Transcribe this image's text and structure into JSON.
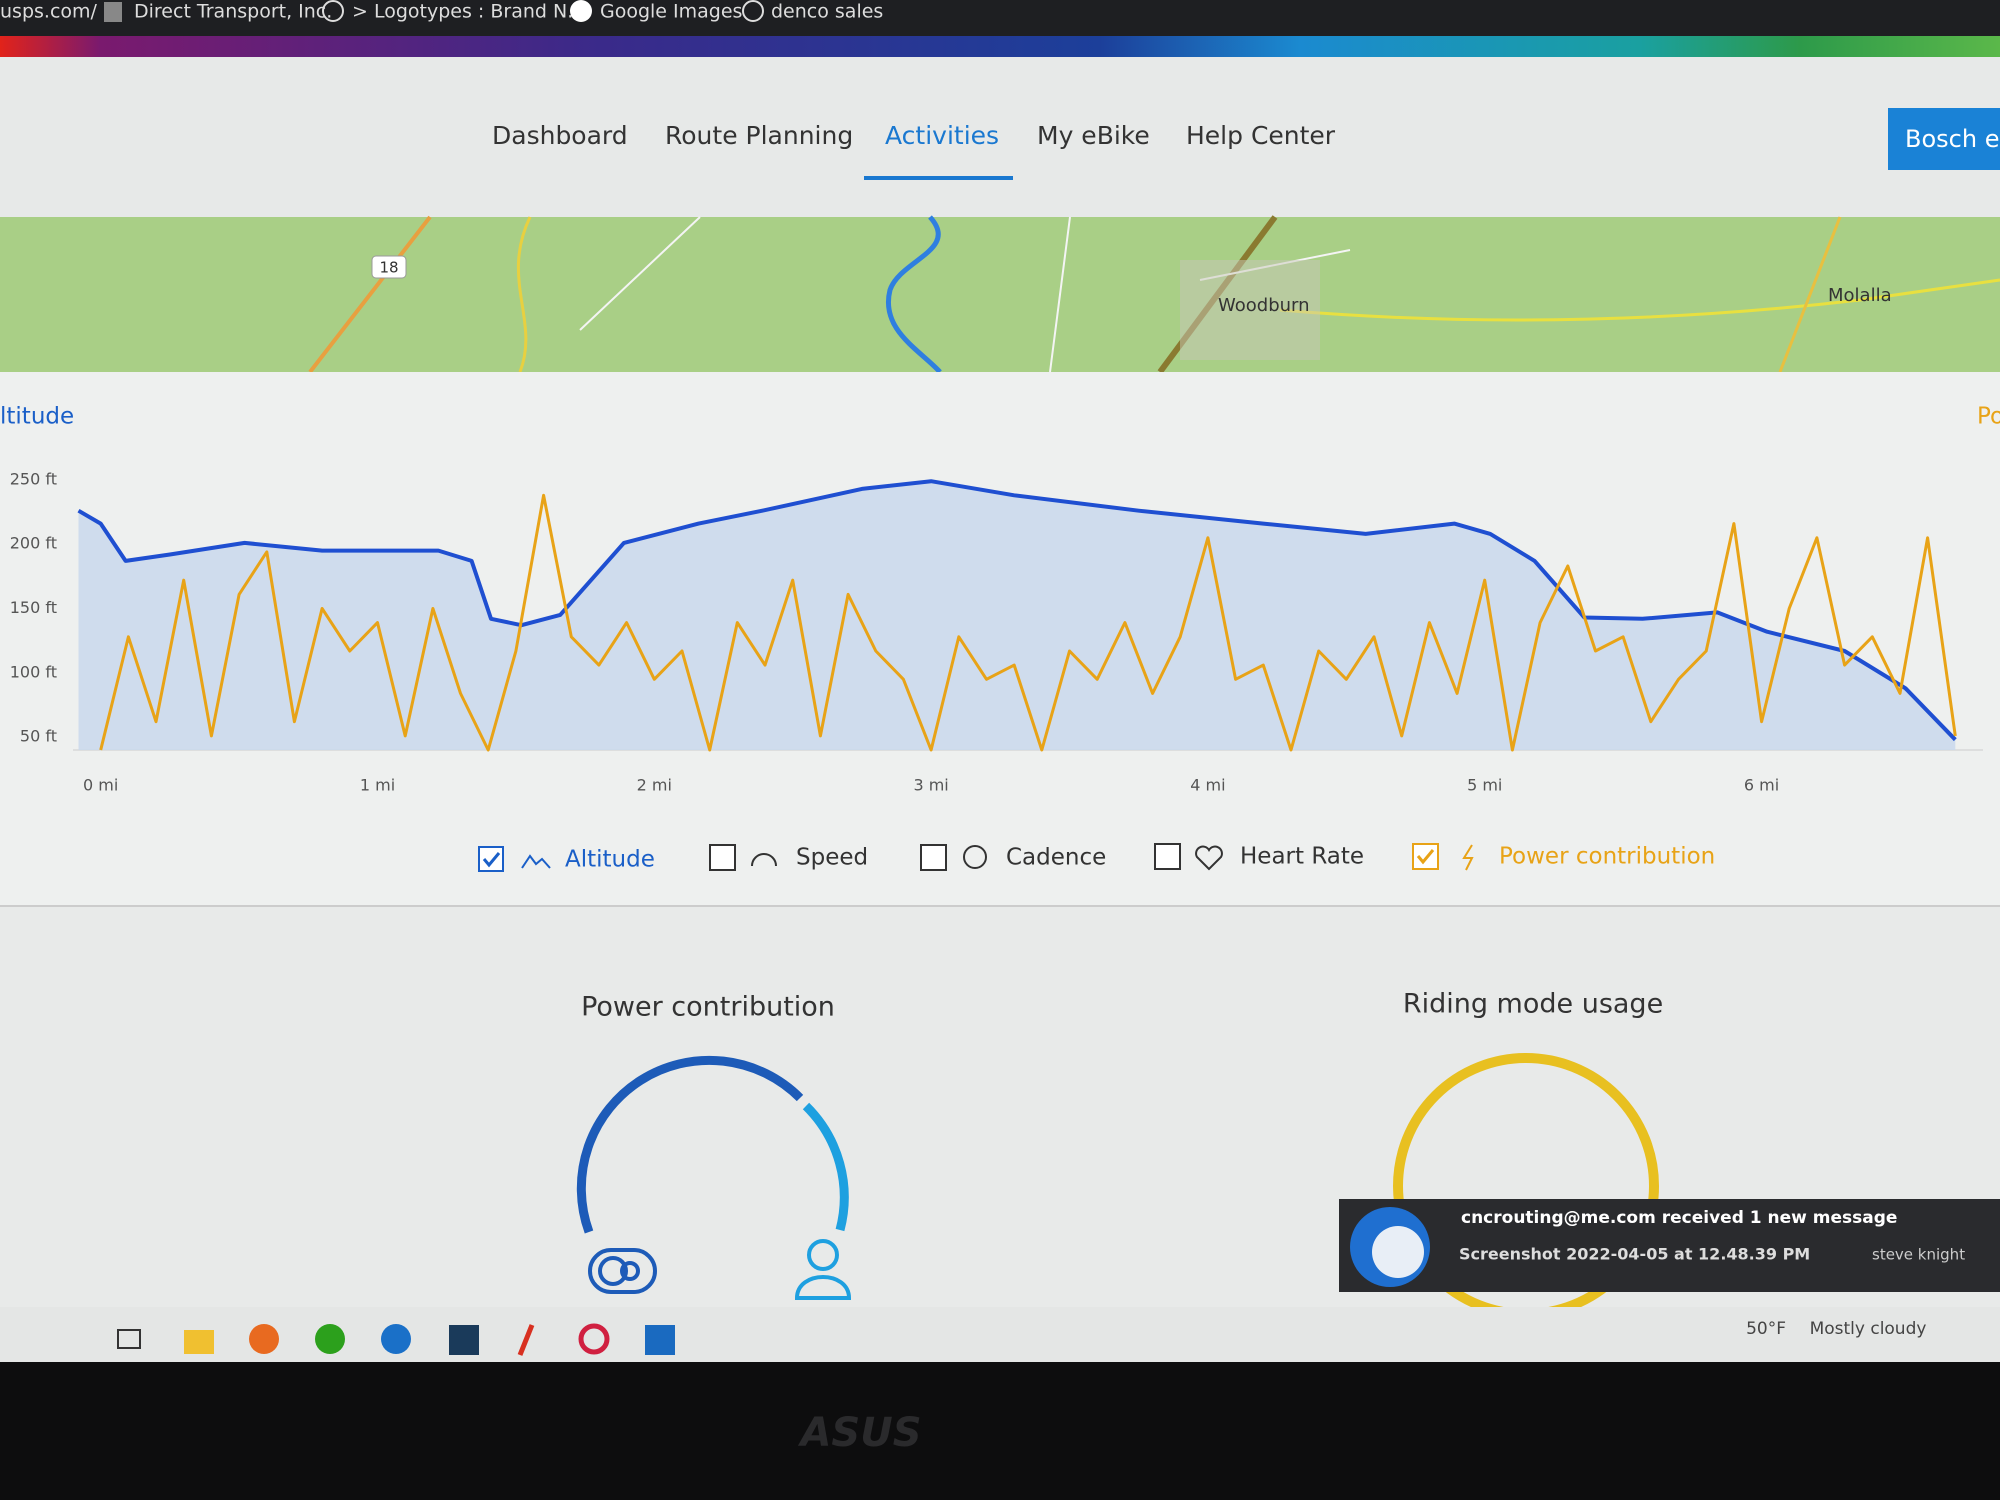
{
  "browser": {
    "bookmarks": [
      "usps.com/",
      "Direct Transport, Inc.",
      "> Logotypes : Brand N...",
      "Google Images",
      "denco sales"
    ]
  },
  "nav": {
    "items": [
      "Dashboard",
      "Route Planning",
      "Activities",
      "My eBike",
      "Help Center"
    ],
    "button": "Bosch el"
  },
  "map": {
    "labels": [
      "18",
      "Woodburn",
      "Molalla"
    ]
  },
  "chart_data": {
    "type": "line",
    "title": "ltitude",
    "y2_label": "Po",
    "xlim": [
      -0.1,
      6.8
    ],
    "xticks": [
      {
        "value": 0,
        "label": "0 mi"
      },
      {
        "value": 1,
        "label": "1 mi"
      },
      {
        "value": 2,
        "label": "2 mi"
      },
      {
        "value": 3,
        "label": "3 mi"
      },
      {
        "value": 4,
        "label": "4 mi"
      },
      {
        "value": 5,
        "label": "5 mi"
      },
      {
        "value": 6,
        "label": "6 mi"
      }
    ],
    "ylim": [
      40,
      260
    ],
    "yticks": [
      {
        "value": 50,
        "label": "50 ft"
      },
      {
        "value": 100,
        "label": "100 ft"
      },
      {
        "value": 150,
        "label": "150 ft"
      },
      {
        "value": 200,
        "label": "200 ft"
      },
      {
        "value": 250,
        "label": "250 ft"
      }
    ],
    "y2lim": [
      0,
      100
    ],
    "series": [
      {
        "name": "Altitude",
        "color": "#1f4fd1",
        "fill": "#c9d8ec",
        "visible": true,
        "x": [
          -0.08,
          0,
          0.09,
          0.25,
          0.34,
          0.52,
          0.8,
          1.01,
          1.22,
          1.34,
          1.41,
          1.52,
          1.66,
          1.89,
          2.16,
          2.39,
          2.75,
          3.0,
          3.3,
          3.75,
          4.2,
          4.57,
          4.89,
          5.02,
          5.18,
          5.36,
          5.57,
          5.84,
          6.02,
          6.3,
          6.52,
          6.7
        ],
        "values": [
          226,
          216,
          187,
          192,
          195,
          201,
          195,
          195,
          195,
          187,
          142,
          137,
          145,
          201,
          216,
          226,
          243,
          249,
          238,
          226,
          216,
          208,
          216,
          208,
          187,
          143,
          142,
          147,
          132,
          117,
          88,
          48
        ]
      },
      {
        "name": "Speed",
        "visible": false
      },
      {
        "name": "Cadence",
        "visible": false
      },
      {
        "name": "Heart Rate",
        "visible": false
      },
      {
        "name": "Power contribution",
        "color": "#e8a317",
        "visible": true,
        "axis": "y2",
        "x": [
          0,
          0.1,
          0.2,
          0.3,
          0.4,
          0.5,
          0.6,
          0.7,
          0.8,
          0.9,
          1.0,
          1.1,
          1.2,
          1.3,
          1.4,
          1.5,
          1.6,
          1.7,
          1.8,
          1.9,
          2.0,
          2.1,
          2.2,
          2.3,
          2.4,
          2.5,
          2.6,
          2.7,
          2.8,
          2.9,
          3.0,
          3.1,
          3.2,
          3.3,
          3.4,
          3.5,
          3.6,
          3.7,
          3.8,
          3.9,
          4.0,
          4.1,
          4.2,
          4.3,
          4.4,
          4.5,
          4.6,
          4.7,
          4.8,
          4.9,
          5.0,
          5.1,
          5.2,
          5.3,
          5.4,
          5.5,
          5.6,
          5.7,
          5.8,
          5.9,
          6.0,
          6.1,
          6.2,
          6.3,
          6.4,
          6.5,
          6.6,
          6.7
        ],
        "values": [
          0,
          40,
          10,
          60,
          5,
          55,
          70,
          10,
          50,
          35,
          45,
          5,
          50,
          20,
          0,
          35,
          90,
          40,
          30,
          45,
          25,
          35,
          0,
          45,
          30,
          60,
          5,
          55,
          35,
          25,
          0,
          40,
          25,
          30,
          0,
          35,
          25,
          45,
          20,
          40,
          75,
          25,
          30,
          0,
          35,
          25,
          40,
          5,
          45,
          20,
          60,
          0,
          45,
          65,
          35,
          40,
          10,
          25,
          35,
          80,
          10,
          50,
          75,
          30,
          40,
          20,
          75,
          5
        ]
      }
    ]
  },
  "panels": {
    "power_title": "Power contribution",
    "riding_title": "Riding mode usage"
  },
  "notification": {
    "title": "cncrouting@me.com received 1 new message",
    "body": "Screenshot 2022-04-05 at 12.48.39 PM",
    "sender": "steve knight"
  },
  "taskbar": {
    "weather": "50°F",
    "condition": "Mostly cloudy"
  },
  "monitor": {
    "brand": "ASUS"
  }
}
